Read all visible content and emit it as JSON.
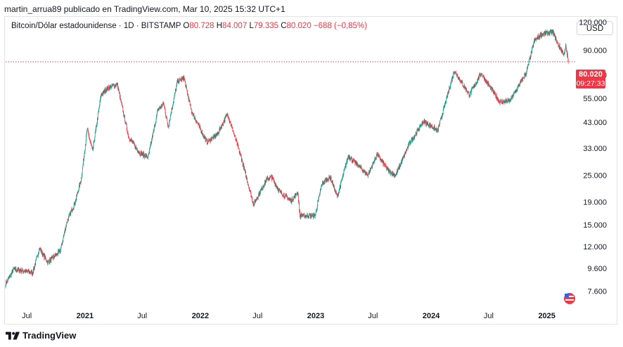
{
  "publisher": "martin_arrua89 publicado en TradingView.com, Mar 10, 2025 15:32 UTC+1",
  "legend": {
    "symbol": "Bitcoin/Dólar estadounidense · 1D · BITSTAMP",
    "o_label": "O",
    "o": "80.728",
    "h_label": "H",
    "h": "84.007",
    "l_label": "L",
    "l": "79.335",
    "c_label": "C",
    "c": "80.020",
    "change": "−688 (−0,85%)"
  },
  "currency_button": "USD",
  "last_price": "80.020",
  "countdown": "09:27:33",
  "footer": {
    "brand": "TradingView"
  },
  "colors": {
    "up": "#089981",
    "down": "#F23645",
    "price_line": "#F23645"
  },
  "chart_data": {
    "type": "candlestick",
    "scale": "log",
    "y_ticks": [
      7600,
      9600,
      12000,
      15000,
      19000,
      25000,
      33000,
      43000,
      55000,
      70000,
      90000,
      120000
    ],
    "y_tick_labels": [
      "7.600",
      "9.600",
      "12.000",
      "15.000",
      "19.000",
      "25.000",
      "33.000",
      "43.000",
      "55.000",
      "70.000",
      "90.000",
      "120.000"
    ],
    "x_ticks": [
      {
        "label": "Jul",
        "date": "2020-07-01",
        "bold": false
      },
      {
        "label": "2021",
        "date": "2021-01-01",
        "bold": true
      },
      {
        "label": "Jul",
        "date": "2021-07-01",
        "bold": false
      },
      {
        "label": "2022",
        "date": "2022-01-01",
        "bold": true
      },
      {
        "label": "Jul",
        "date": "2022-07-01",
        "bold": false
      },
      {
        "label": "2023",
        "date": "2023-01-01",
        "bold": true
      },
      {
        "label": "Jul",
        "date": "2023-07-01",
        "bold": false
      },
      {
        "label": "2024",
        "date": "2024-01-01",
        "bold": true
      },
      {
        "label": "Jul",
        "date": "2024-07-01",
        "bold": false
      },
      {
        "label": "2025",
        "date": "2025-01-01",
        "bold": true
      }
    ],
    "x_range": [
      "2020-04-25",
      "2025-03-25"
    ],
    "y_range": [
      6800,
      125000
    ],
    "last_close": 80020,
    "anchors": [
      [
        "2020-04-25",
        8200
      ],
      [
        "2020-05-20",
        9500
      ],
      [
        "2020-06-15",
        9400
      ],
      [
        "2020-07-20",
        9200
      ],
      [
        "2020-08-10",
        11800
      ],
      [
        "2020-09-05",
        10200
      ],
      [
        "2020-10-15",
        11500
      ],
      [
        "2020-11-05",
        15500
      ],
      [
        "2020-12-01",
        19000
      ],
      [
        "2020-12-20",
        24000
      ],
      [
        "2021-01-08",
        40000
      ],
      [
        "2021-01-25",
        32000
      ],
      [
        "2021-02-21",
        57000
      ],
      [
        "2021-03-13",
        61000
      ],
      [
        "2021-04-13",
        63500
      ],
      [
        "2021-05-19",
        37000
      ],
      [
        "2021-06-22",
        31500
      ],
      [
        "2021-07-20",
        30000
      ],
      [
        "2021-08-20",
        49000
      ],
      [
        "2021-09-07",
        52000
      ],
      [
        "2021-09-21",
        41000
      ],
      [
        "2021-10-20",
        65000
      ],
      [
        "2021-11-10",
        68000
      ],
      [
        "2021-12-04",
        48000
      ],
      [
        "2022-01-22",
        35000
      ],
      [
        "2022-02-24",
        38000
      ],
      [
        "2022-03-28",
        47000
      ],
      [
        "2022-05-10",
        30000
      ],
      [
        "2022-06-18",
        18500
      ],
      [
        "2022-07-30",
        24000
      ],
      [
        "2022-08-14",
        24500
      ],
      [
        "2022-09-10",
        21000
      ],
      [
        "2022-10-15",
        19200
      ],
      [
        "2022-11-05",
        21000
      ],
      [
        "2022-11-12",
        16500
      ],
      [
        "2022-12-30",
        16500
      ],
      [
        "2023-01-21",
        23000
      ],
      [
        "2023-02-16",
        24500
      ],
      [
        "2023-03-10",
        20000
      ],
      [
        "2023-04-14",
        30500
      ],
      [
        "2023-06-15",
        25000
      ],
      [
        "2023-07-14",
        31000
      ],
      [
        "2023-08-20",
        26000
      ],
      [
        "2023-09-11",
        25000
      ],
      [
        "2023-10-24",
        34500
      ],
      [
        "2023-12-08",
        43500
      ],
      [
        "2024-01-22",
        39500
      ],
      [
        "2024-03-14",
        73000
      ],
      [
        "2024-05-01",
        57000
      ],
      [
        "2024-06-07",
        71000
      ],
      [
        "2024-08-05",
        53000
      ],
      [
        "2024-09-06",
        53500
      ],
      [
        "2024-10-29",
        72000
      ],
      [
        "2024-11-22",
        99000
      ],
      [
        "2024-12-17",
        106500
      ],
      [
        "2025-01-20",
        108500
      ],
      [
        "2025-02-03",
        97000
      ],
      [
        "2025-02-25",
        86000
      ],
      [
        "2025-03-02",
        94000
      ],
      [
        "2025-03-10",
        80020
      ]
    ]
  }
}
